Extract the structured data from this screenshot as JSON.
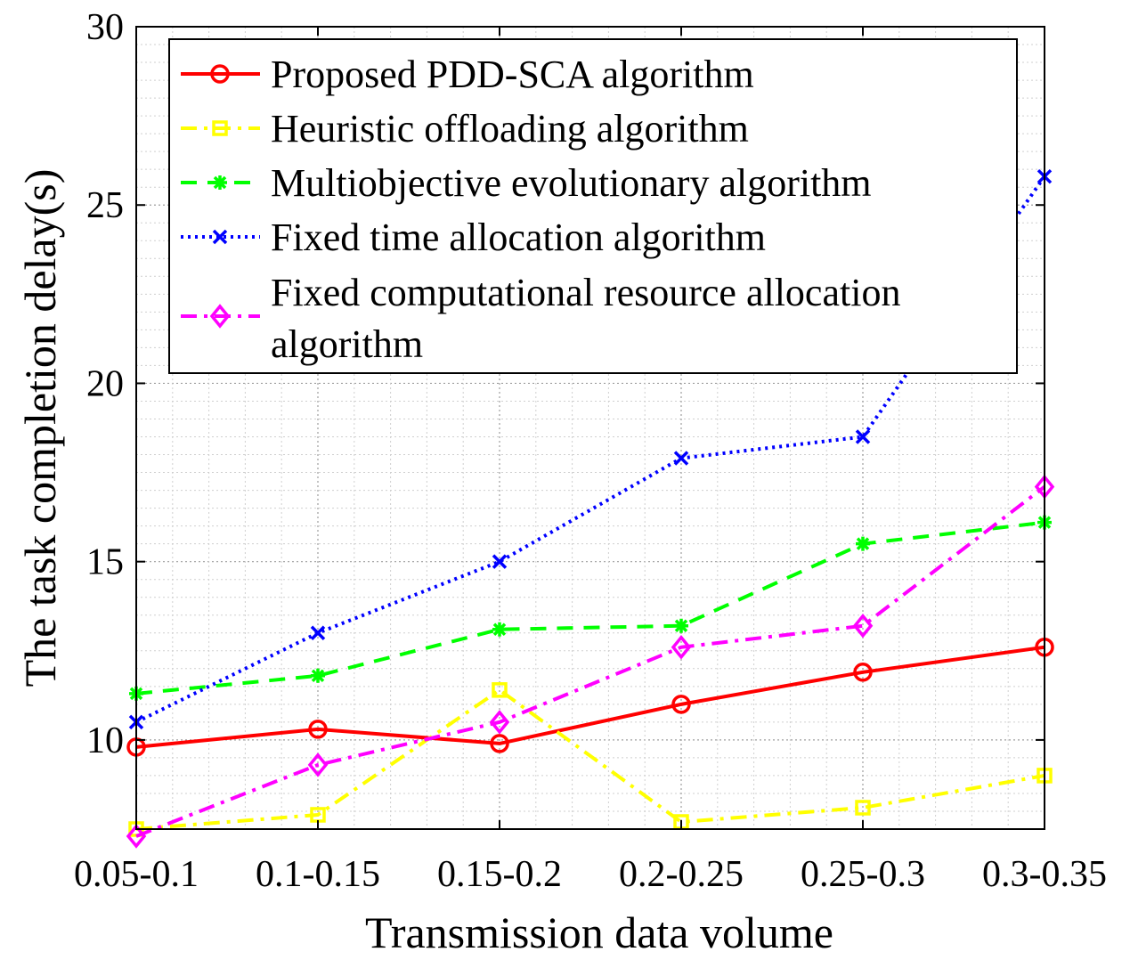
{
  "chart_data": {
    "type": "line",
    "title": "",
    "xlabel": "Transmission data volume",
    "ylabel": "The task completion delay(s)",
    "categories": [
      "0.05-0.1",
      "0.1-0.15",
      "0.15-0.2",
      "0.2-0.25",
      "0.25-0.3",
      "0.3-0.35"
    ],
    "ylim": [
      7.5,
      30
    ],
    "yticks": [
      10,
      15,
      20,
      25,
      30
    ],
    "grid": true,
    "legend_position": "top-right",
    "series": [
      {
        "name": "Proposed PDD-SCA algorithm",
        "values": [
          9.8,
          10.3,
          9.9,
          11.0,
          11.9,
          12.6
        ],
        "color": "#ff0000",
        "marker": "circle",
        "dash": "solid"
      },
      {
        "name": "Heuristic offloading algorithm",
        "values": [
          7.5,
          7.9,
          11.4,
          7.7,
          8.1,
          9.0
        ],
        "color": "#ffff00",
        "marker": "square",
        "dash": "dashdot"
      },
      {
        "name": "Multiobjective evolutionary algorithm",
        "values": [
          11.3,
          11.8,
          13.1,
          13.2,
          15.5,
          16.1
        ],
        "color": "#00ff00",
        "marker": "asterisk",
        "dash": "dashed"
      },
      {
        "name": "Fixed time allocation algorithm",
        "values": [
          10.5,
          13.0,
          15.0,
          17.9,
          18.5,
          25.8
        ],
        "color": "#0000ff",
        "marker": "x",
        "dash": "dotted"
      },
      {
        "name": "Fixed computational resource allocation algorithm",
        "values": [
          7.3,
          9.3,
          10.5,
          12.6,
          13.2,
          17.1
        ],
        "color": "#ff00ff",
        "marker": "diamond",
        "dash": "dashdot"
      }
    ],
    "legend_lines": [
      [
        "Proposed PDD-SCA algorithm"
      ],
      [
        "Heuristic offloading algorithm"
      ],
      [
        "Multiobjective evolutionary algorithm"
      ],
      [
        "Fixed time allocation algorithm"
      ],
      [
        "Fixed computational resource allocation",
        "algorithm"
      ]
    ]
  }
}
